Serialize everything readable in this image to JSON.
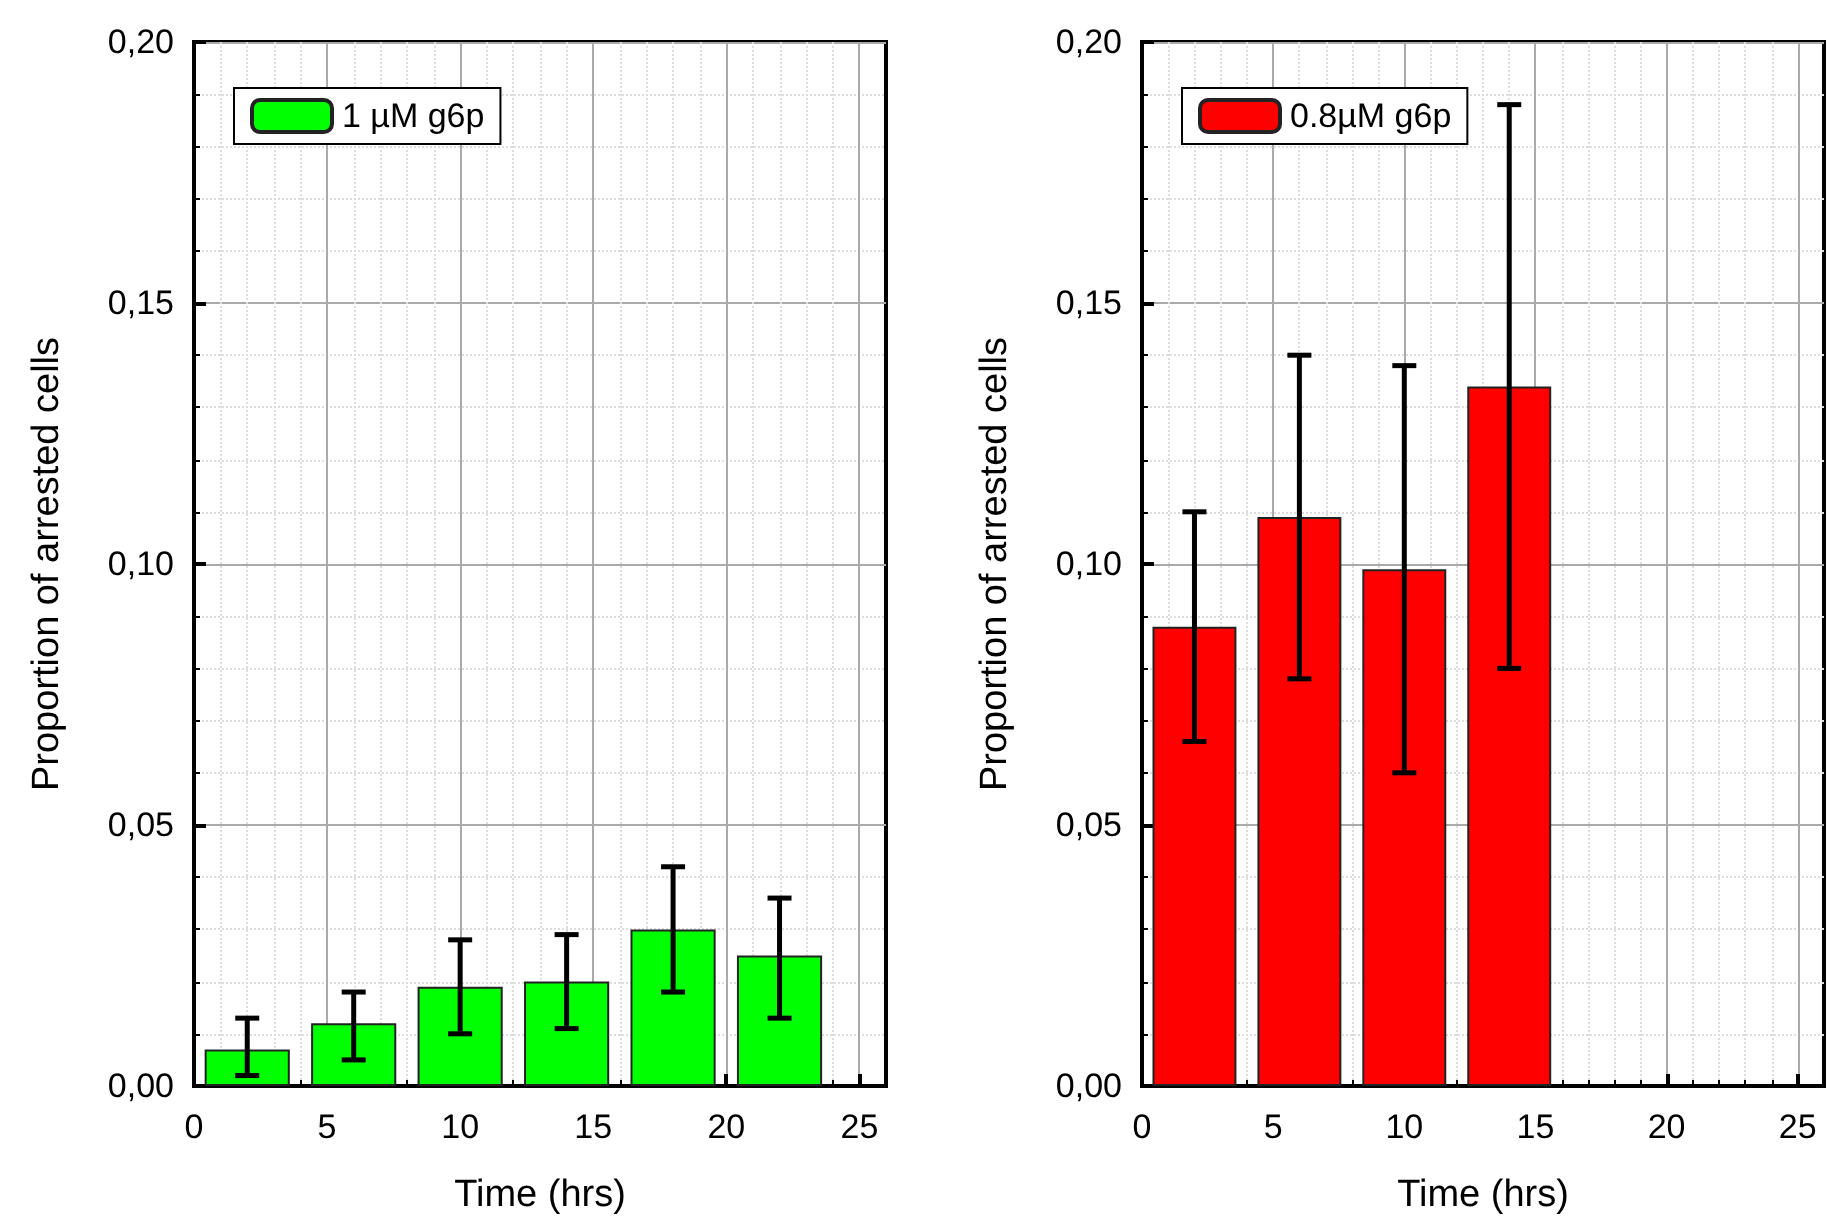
{
  "chart_data": [
    {
      "type": "bar",
      "x": [
        2,
        6,
        10,
        14,
        18,
        22
      ],
      "xlabel": "Time (hrs)",
      "ylabel": "Proportion of arrested cells",
      "series": [
        {
          "name": "1 µM g6p",
          "color": "#00ff00",
          "values": [
            0.007,
            0.012,
            0.019,
            0.02,
            0.03,
            0.025
          ],
          "errors": [
            [
              0.002,
              0.013
            ],
            [
              0.005,
              0.018
            ],
            [
              0.01,
              0.028
            ],
            [
              0.011,
              0.029
            ],
            [
              0.018,
              0.042
            ],
            [
              0.013,
              0.036
            ]
          ]
        }
      ],
      "xlim": [
        0,
        26
      ],
      "xticks": [
        0,
        5,
        10,
        15,
        20,
        25
      ],
      "ylim": [
        0,
        0.2
      ],
      "yticks": [
        {
          "value": 0,
          "label": "0,00"
        },
        {
          "value": 0.05,
          "label": "0,05"
        },
        {
          "value": 0.1,
          "label": "0,10"
        },
        {
          "value": 0.15,
          "label": "0,15"
        },
        {
          "value": 0.2,
          "label": "0,20"
        }
      ],
      "grid": true,
      "legend": "top left"
    },
    {
      "type": "bar",
      "x": [
        2,
        6,
        10,
        14
      ],
      "xlabel": "Time (hrs)",
      "ylabel": "Proportion of arrested cells",
      "series": [
        {
          "name": "0.8µM g6p",
          "color": "#ff0000",
          "values": [
            0.088,
            0.109,
            0.099,
            0.134
          ],
          "errors": [
            [
              0.066,
              0.11
            ],
            [
              0.078,
              0.14
            ],
            [
              0.06,
              0.138
            ],
            [
              0.08,
              0.188
            ]
          ]
        }
      ],
      "xlim": [
        0,
        26
      ],
      "xticks": [
        0,
        5,
        10,
        15,
        20,
        25
      ],
      "ylim": [
        0,
        0.2
      ],
      "yticks": [
        {
          "value": 0,
          "label": "0,00"
        },
        {
          "value": 0.05,
          "label": "0,05"
        },
        {
          "value": 0.1,
          "label": "0,10"
        },
        {
          "value": 0.15,
          "label": "0,15"
        },
        {
          "value": 0.2,
          "label": "0,20"
        }
      ],
      "grid": true,
      "legend": "top left"
    }
  ]
}
